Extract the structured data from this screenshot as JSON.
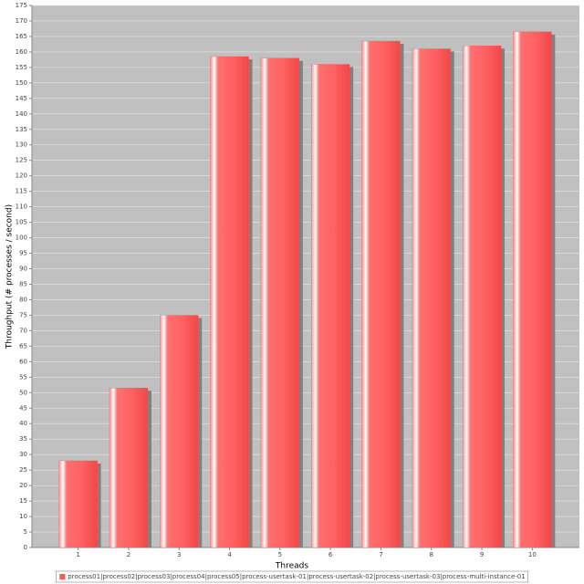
{
  "chart_data": {
    "type": "bar",
    "x_label": "Threads",
    "y_label": "Throughput (# processes / second)",
    "categories": [
      "1",
      "2",
      "3",
      "4",
      "5",
      "6",
      "7",
      "8",
      "9",
      "10"
    ],
    "series": [
      {
        "name": "process01|process02|process03|process04|process05|process-usertask-01|process-usertask-02|process-usertask-03|process-multi-instance-01",
        "color": "#ff5555",
        "values": [
          28,
          51.5,
          75,
          158.5,
          158,
          156,
          163.5,
          161,
          162,
          166.5
        ]
      }
    ],
    "ylim": [
      0,
      175
    ],
    "yticks": [
      0,
      5,
      10,
      15,
      20,
      25,
      30,
      35,
      40,
      45,
      50,
      55,
      60,
      65,
      70,
      75,
      80,
      85,
      90,
      95,
      100,
      105,
      110,
      115,
      120,
      125,
      130,
      135,
      140,
      145,
      150,
      155,
      160,
      165,
      170,
      175
    ],
    "grid": true,
    "legend": "bottom"
  }
}
